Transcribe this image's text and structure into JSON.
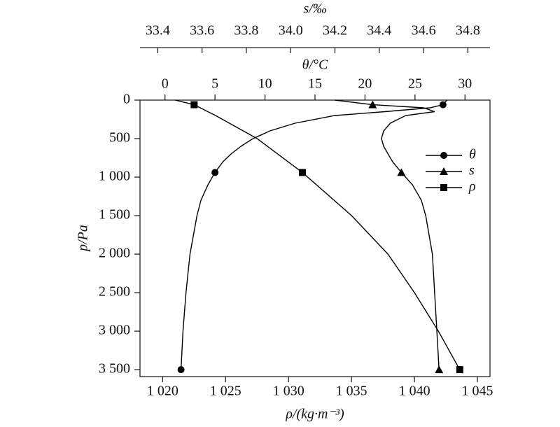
{
  "chart_data": {
    "type": "line",
    "y_label": "p/Pa",
    "ylim": [
      0,
      3590
    ],
    "y_inverted": true,
    "yticks": [
      0,
      500,
      {
        "value": 1000,
        "label": "1 000"
      },
      {
        "value": 1500,
        "label": "1 500"
      },
      {
        "value": 2000,
        "label": "2 000"
      },
      {
        "value": 2500,
        "label": "2 500"
      },
      {
        "value": 3000,
        "label": "3 000"
      },
      {
        "value": 3500,
        "label": "3 500"
      }
    ],
    "xaxes": [
      {
        "label": "ρ/(kg·m⁻³)",
        "position": "bottom",
        "lim": [
          1018.2,
          1046
        ],
        "ticks": [
          {
            "value": 1020,
            "label": "1 020"
          },
          {
            "value": 1025,
            "label": "1 025"
          },
          {
            "value": 1030,
            "label": "1 030"
          },
          {
            "value": 1035,
            "label": "1 035"
          },
          {
            "value": 1040,
            "label": "1 040"
          },
          {
            "value": 1045,
            "label": "1 045"
          }
        ]
      },
      {
        "label": "θ/°C",
        "position": "frame-top",
        "lim": [
          -2.5,
          32.5
        ],
        "ticks": [
          0,
          5,
          10,
          15,
          20,
          25,
          30
        ]
      },
      {
        "label": "s/‰",
        "position": "top",
        "lim": [
          33.32,
          34.9
        ],
        "ticks": [
          33.4,
          33.6,
          33.8,
          {
            "value": 34.0,
            "label": "34.0"
          },
          34.2,
          34.4,
          34.6,
          34.8
        ]
      }
    ],
    "series": [
      {
        "name": "θ",
        "marker": "circle",
        "color": "#000000",
        "xaxis": 1,
        "x": [
          28.2,
          27.8,
          26.5,
          22,
          17,
          13,
          10.5,
          8.8,
          7.6,
          6.6,
          5.8,
          5,
          4.3,
          3.6,
          3.2,
          2.5,
          2.1,
          1.8,
          1.6
        ],
        "y": [
          0,
          60,
          100,
          150,
          200,
          300,
          400,
          500,
          600,
          700,
          800,
          940,
          1100,
          1300,
          1500,
          2000,
          2500,
          3000,
          3500
        ],
        "marker_indices": [
          1,
          11,
          18
        ]
      },
      {
        "name": "s",
        "marker": "triangle",
        "color": "#000000",
        "xaxis": 2,
        "x": [
          34.2,
          34.37,
          34.6,
          34.65,
          34.52,
          34.45,
          34.42,
          34.41,
          34.42,
          34.44,
          34.46,
          34.5,
          34.55,
          34.59,
          34.61,
          34.64,
          34.65,
          34.66,
          34.67
        ],
        "y": [
          0,
          60,
          100,
          150,
          200,
          300,
          400,
          500,
          600,
          700,
          800,
          940,
          1100,
          1300,
          1500,
          2000,
          2500,
          3000,
          3500
        ],
        "marker_indices": [
          1,
          11,
          18
        ]
      },
      {
        "name": "ρ",
        "marker": "square",
        "color": "#000000",
        "xaxis": 0,
        "x": [
          1021.0,
          1022.5,
          1024.2,
          1027.5,
          1031.1,
          1035,
          1037.9,
          1040.0,
          1041.9,
          1043.6
        ],
        "y": [
          0,
          60,
          200,
          500,
          940,
          1500,
          2000,
          2500,
          3000,
          3500
        ],
        "marker_indices": [
          1,
          4,
          9
        ]
      }
    ],
    "legend": "upper right"
  }
}
